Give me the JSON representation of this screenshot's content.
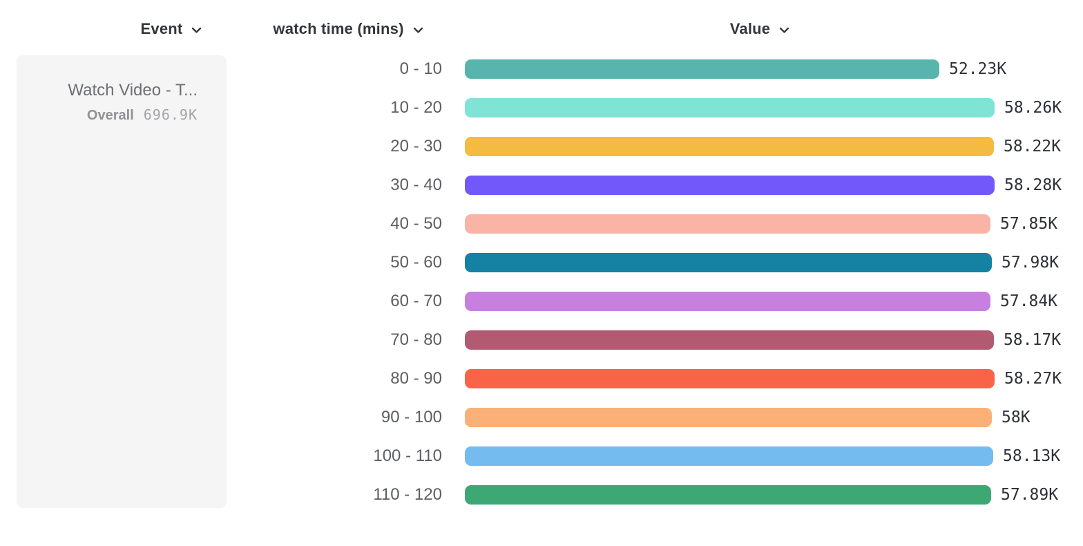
{
  "header": {
    "event_column": {
      "label": "Event"
    },
    "watch_time_column": {
      "label": "watch time (mins)"
    },
    "value_column": {
      "label": "Value"
    }
  },
  "event_card": {
    "title": "Watch Video - T...",
    "overall_label": "Overall",
    "overall_value": "696.9K"
  },
  "chart_data": {
    "type": "bar",
    "orientation": "horizontal",
    "title": "",
    "xlabel": "Value",
    "ylabel": "watch time (mins)",
    "categories": [
      "0 - 10",
      "10 - 20",
      "20 - 30",
      "30 - 40",
      "40 - 50",
      "50 - 60",
      "60 - 70",
      "70 - 80",
      "80 - 90",
      "90 - 100",
      "100 - 110",
      "110 - 120"
    ],
    "values": [
      52230,
      58260,
      58220,
      58280,
      57850,
      57980,
      57840,
      58170,
      58270,
      58000,
      58130,
      57890
    ],
    "value_labels": [
      "52.23K",
      "58.26K",
      "58.22K",
      "58.28K",
      "57.85K",
      "57.98K",
      "57.84K",
      "58.17K",
      "58.27K",
      "58K",
      "58.13K",
      "57.89K"
    ],
    "bar_colors": [
      "#58b5ad",
      "#7fe3d6",
      "#f4ba42",
      "#7257fa",
      "#fab4a6",
      "#1581a3",
      "#c77fe0",
      "#b25a72",
      "#f96448",
      "#fbb077",
      "#74bbf0",
      "#3da874"
    ],
    "xlim": [
      0,
      58280
    ],
    "grid": false,
    "legend": "none"
  },
  "colors": {
    "card_background": "#f5f5f6",
    "header_text": "#33353b",
    "bucket_label_text": "#5c5e63",
    "value_label_text": "#2e3036"
  }
}
